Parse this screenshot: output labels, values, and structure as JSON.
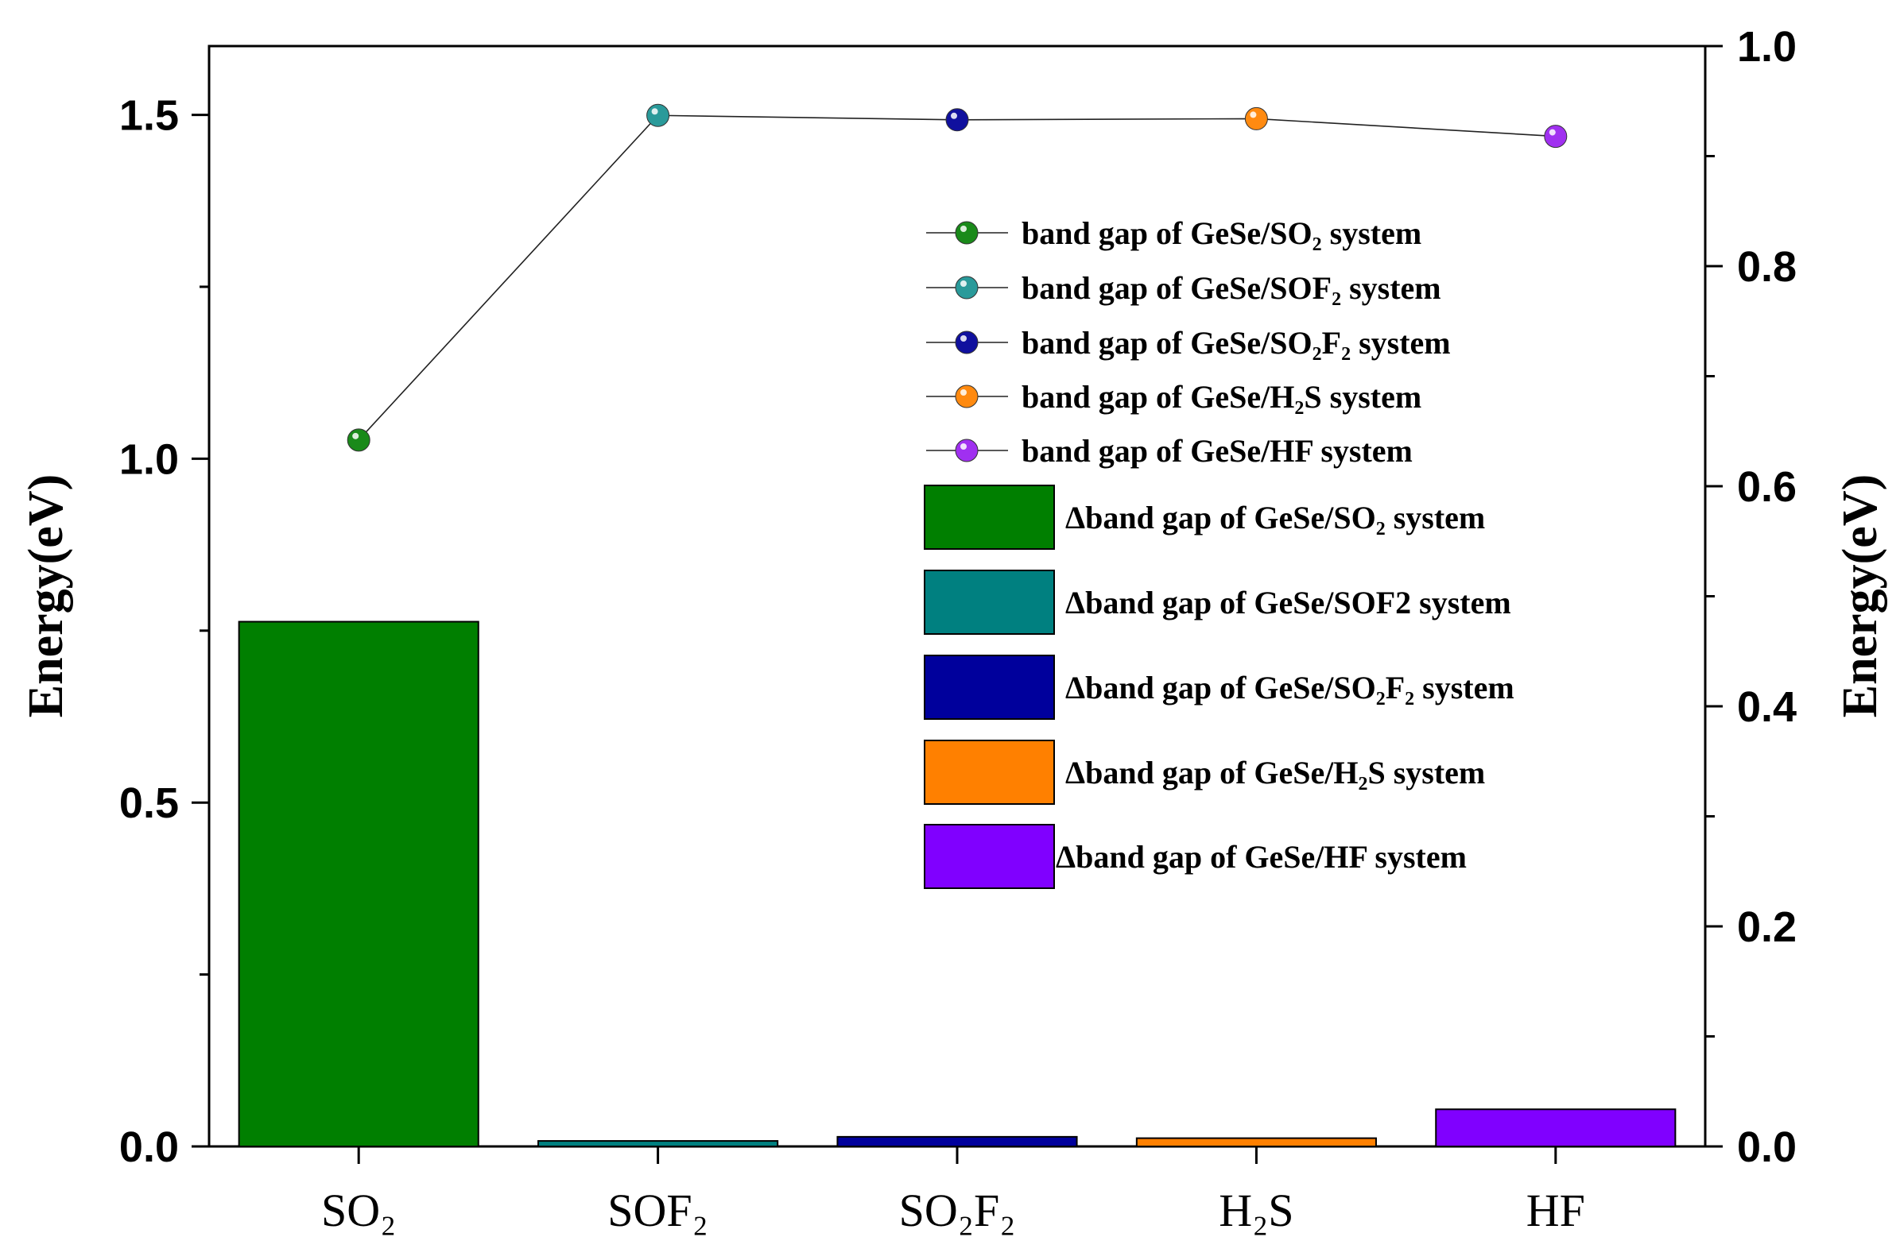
{
  "chart_data": {
    "type": "bar+line",
    "categories": [
      "SO₂",
      "SOF₂",
      "SO₂F₂",
      "H₂S",
      "HF"
    ],
    "bar_series": {
      "axis": "left",
      "values": [
        0.763,
        0.008,
        0.014,
        0.012,
        0.054
      ],
      "colors": [
        "#007f00",
        "#008080",
        "#00009c",
        "#ff8000",
        "#8000ff"
      ]
    },
    "line_series": {
      "axis": "right",
      "values": [
        0.642,
        0.937,
        0.933,
        0.934,
        0.918
      ],
      "colors": [
        "#1a8a1a",
        "#2a9a9a",
        "#10109e",
        "#ff8a10",
        "#a030f0"
      ]
    },
    "left_axis": {
      "title": "Energy(eV)",
      "ylim": [
        0,
        1.6
      ],
      "major_ticks": [
        0.0,
        0.5,
        1.0,
        1.5
      ],
      "tick_labels": [
        "0.0",
        "0.5",
        "1.0",
        "1.5"
      ],
      "minor_ticks": [
        0.25,
        0.75,
        1.25
      ]
    },
    "right_axis": {
      "title": "Energy(eV)",
      "ylim": [
        0,
        1.0
      ],
      "major_ticks": [
        0.0,
        0.2,
        0.4,
        0.6,
        0.8,
        1.0
      ],
      "tick_labels": [
        "0.0",
        "0.2",
        "0.4",
        "0.6",
        "0.8",
        "1.0"
      ],
      "minor_ticks": [
        0.1,
        0.3,
        0.5,
        0.7,
        0.9
      ]
    },
    "legend": {
      "placement": "upper-right inside",
      "line_entries": [
        "band gap of GeSe/SO₂ system",
        "band gap of GeSe/SOF₂ system",
        "band gap of GeSe/SO₂F₂  system",
        "band gap of GeSe/H₂S system",
        "band gap of GeSe/HF system"
      ],
      "bar_entries": [
        "Δband gap of GeSe/SO₂ system",
        "Δband gap of GeSe/SOF2 system",
        "Δband gap of GeSe/SO₂F₂ system",
        "Δband gap of GeSe/H₂S system",
        "Δband gap of GeSe/HF system"
      ]
    }
  }
}
